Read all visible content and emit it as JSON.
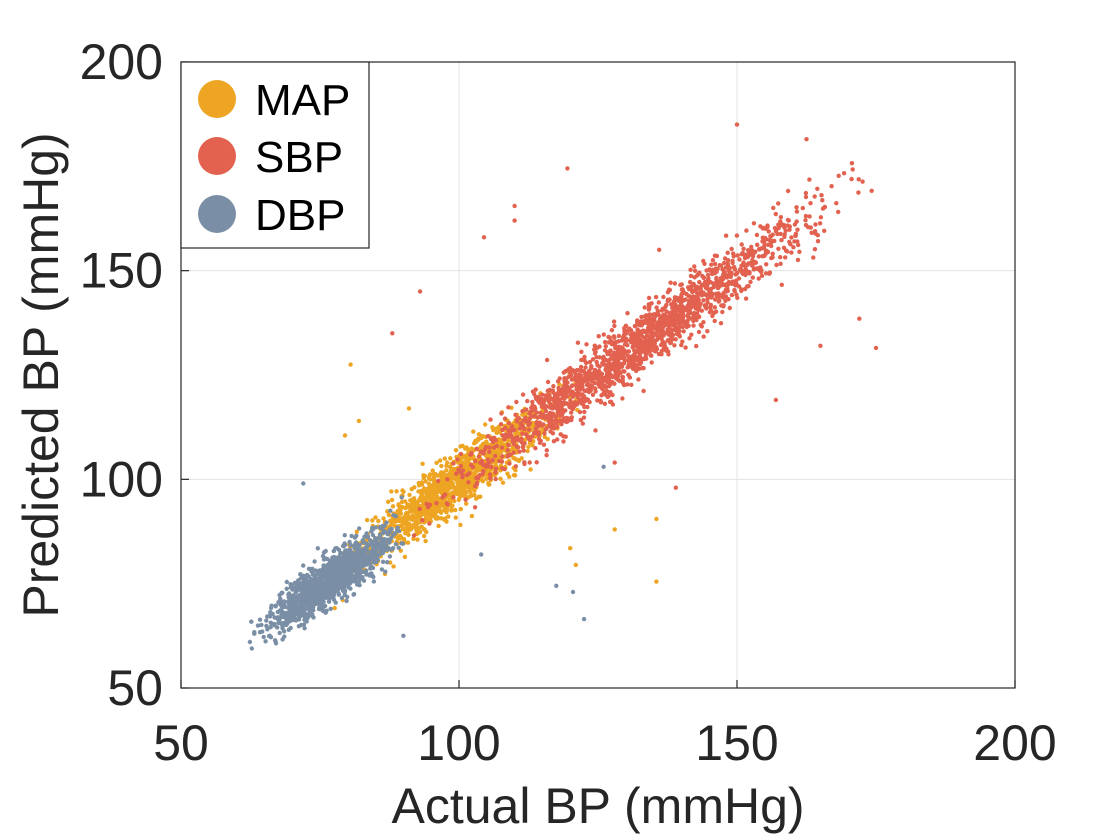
{
  "chart_data": {
    "type": "scatter",
    "xlabel": "Actual BP (mmHg)",
    "ylabel": "Predicted BP (mmHg)",
    "xlim": [
      50,
      200
    ],
    "ylim": [
      50,
      200
    ],
    "x_ticks": [
      "50",
      "100",
      "150",
      "200"
    ],
    "y_ticks": [
      "50",
      "100",
      "150",
      "200"
    ],
    "grid": true,
    "legend_position": "top-left",
    "colors": {
      "MAP": "#EDA523",
      "SBP": "#E2614F",
      "DBP": "#7A8FA6"
    },
    "series": [
      {
        "name": "MAP",
        "distribution": {
          "x_range": [
            74,
            125
          ],
          "slope": 1.0,
          "intercept": 0,
          "spread": 3.4,
          "count": 1300
        },
        "outliers": [
          {
            "x": 80.5,
            "y": 127.5
          },
          {
            "x": 120,
            "y": 83.5
          },
          {
            "x": 135.5,
            "y": 90.5
          },
          {
            "x": 135.5,
            "y": 75.5
          },
          {
            "x": 121,
            "y": 79.5
          },
          {
            "x": 79.5,
            "y": 110.5
          },
          {
            "x": 82,
            "y": 114
          },
          {
            "x": 128,
            "y": 88
          },
          {
            "x": 91,
            "y": 117
          }
        ]
      },
      {
        "name": "SBP",
        "distribution": {
          "x_range": [
            88,
            176
          ],
          "slope": 1.0,
          "intercept": 0,
          "spread": 3.6,
          "count": 1700
        },
        "outliers": [
          {
            "x": 150,
            "y": 185
          },
          {
            "x": 162.5,
            "y": 181.5
          },
          {
            "x": 119.5,
            "y": 174.5
          },
          {
            "x": 110,
            "y": 165.5
          },
          {
            "x": 104.5,
            "y": 158
          },
          {
            "x": 93,
            "y": 145
          },
          {
            "x": 88,
            "y": 135
          },
          {
            "x": 175,
            "y": 131.5
          },
          {
            "x": 165,
            "y": 132
          },
          {
            "x": 172,
            "y": 138.5
          },
          {
            "x": 157,
            "y": 119
          },
          {
            "x": 128,
            "y": 104
          },
          {
            "x": 139,
            "y": 98
          },
          {
            "x": 110,
            "y": 162
          },
          {
            "x": 136,
            "y": 155
          }
        ]
      },
      {
        "name": "DBP",
        "distribution": {
          "x_range": [
            62,
            92
          ],
          "slope": 0.9,
          "intercept": 6.5,
          "spread": 2.7,
          "count": 1300
        },
        "outliers": [
          {
            "x": 72,
            "y": 99
          },
          {
            "x": 117.5,
            "y": 74.5
          },
          {
            "x": 122.5,
            "y": 66.5
          },
          {
            "x": 126,
            "y": 103
          },
          {
            "x": 120.5,
            "y": 73
          },
          {
            "x": 90,
            "y": 62.5
          },
          {
            "x": 104,
            "y": 82
          }
        ]
      }
    ]
  }
}
